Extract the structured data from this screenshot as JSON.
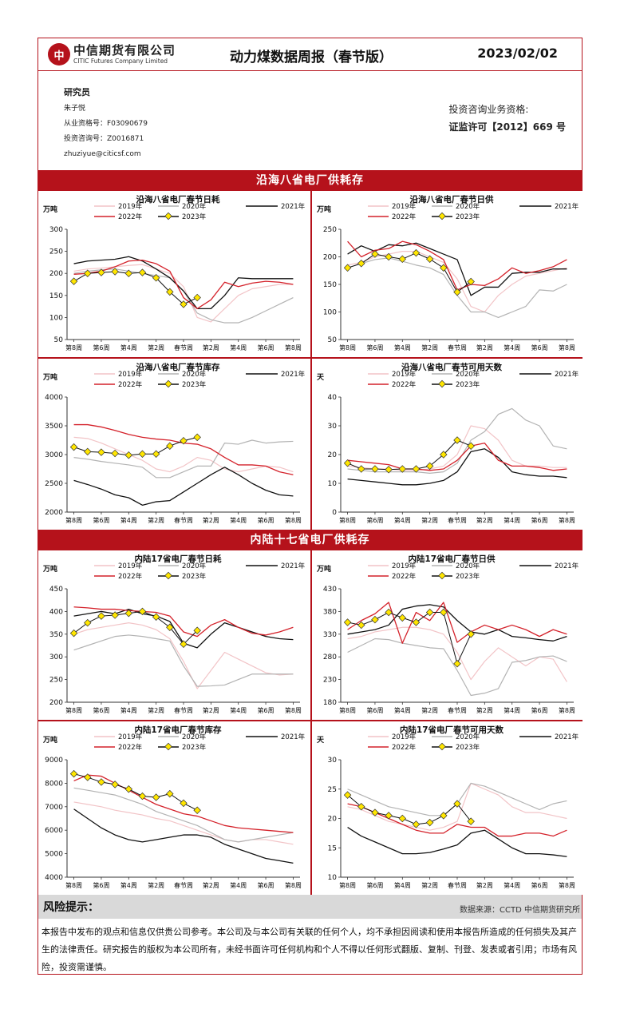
{
  "header": {
    "logo_mark": "中",
    "company_cn": "中信期货有限公司",
    "company_en": "CITIC Futures Company Limited",
    "title": "动力煤数据周报（春节版）",
    "date": "2023/02/02"
  },
  "analyst": {
    "role": "研究员",
    "name": "朱子悦",
    "license": "从业资格号：F03090679",
    "consult": "投资咨询号：Z0016871",
    "email": "zhuziyue@citicsf.com"
  },
  "qualification": {
    "line1": "投资咨询业务资格:",
    "line2": "证监许可【2012】669 号"
  },
  "sections": {
    "coastal": "沿海八省电厂供耗存",
    "inland": "内陆十七省电厂供耗存"
  },
  "legend": [
    "2019年",
    "2020年",
    "2021年",
    "2022年",
    "2023年"
  ],
  "x_ticks": [
    "第8周",
    "第6周",
    "第4周",
    "第2周",
    "春节周",
    "第2周",
    "第4周",
    "第6周",
    "第8周"
  ],
  "colors": {
    "y2019": "#f2c4c7",
    "y2020": "#b3b3b3",
    "y2021": "#111111",
    "y2022": "#d4212a",
    "y2023_line": "#111111",
    "y2023_marker": "#ffe600",
    "brand": "#b5121b"
  },
  "charts": [
    {
      "title": "沿海八省电厂春节日耗",
      "unit": "万吨",
      "ylim": [
        50,
        300
      ],
      "yticks": [
        50,
        100,
        150,
        200,
        250,
        300
      ],
      "series": [
        {
          "name": "2019年",
          "values": [
            205,
            210,
            212,
            215,
            218,
            220,
            210,
            200,
            170,
            100,
            90,
            120,
            150,
            165,
            170,
            175,
            175
          ]
        },
        {
          "name": "2020年",
          "values": [
            200,
            205,
            208,
            210,
            205,
            200,
            195,
            190,
            160,
            110,
            95,
            88,
            88,
            100,
            115,
            130,
            145
          ]
        },
        {
          "name": "2021年",
          "values": [
            222,
            228,
            230,
            232,
            238,
            228,
            210,
            190,
            160,
            120,
            120,
            150,
            190,
            188,
            188,
            188,
            188
          ]
        },
        {
          "name": "2022年",
          "values": [
            198,
            200,
            205,
            215,
            228,
            230,
            222,
            205,
            145,
            120,
            140,
            180,
            170,
            178,
            182,
            180,
            175
          ]
        },
        {
          "name": "2023年",
          "values": [
            182,
            200,
            202,
            204,
            200,
            202,
            190,
            158,
            130,
            145,
            null,
            null,
            null,
            null,
            null,
            null,
            null
          ]
        }
      ]
    },
    {
      "title": "沿海八省电厂春节日供",
      "unit": "万吨",
      "ylim": [
        50,
        250
      ],
      "yticks": [
        50,
        100,
        150,
        200,
        250
      ],
      "series": [
        {
          "name": "2019年",
          "values": [
            185,
            190,
            200,
            205,
            210,
            210,
            200,
            190,
            160,
            110,
            100,
            130,
            150,
            165,
            170,
            175,
            180
          ]
        },
        {
          "name": "2020年",
          "values": [
            180,
            188,
            195,
            198,
            192,
            185,
            180,
            168,
            130,
            100,
            100,
            90,
            100,
            110,
            140,
            138,
            150
          ]
        },
        {
          "name": "2021年",
          "values": [
            205,
            220,
            210,
            222,
            220,
            225,
            215,
            205,
            195,
            130,
            145,
            145,
            170,
            172,
            172,
            178,
            178
          ]
        },
        {
          "name": "2022年",
          "values": [
            228,
            200,
            212,
            215,
            228,
            222,
            210,
            195,
            140,
            150,
            148,
            160,
            180,
            170,
            175,
            182,
            195
          ]
        },
        {
          "name": "2023年",
          "values": [
            180,
            188,
            205,
            200,
            196,
            207,
            196,
            180,
            136,
            155,
            null,
            null,
            null,
            null,
            null,
            null,
            null
          ]
        }
      ]
    },
    {
      "title": "沿海八省电厂春节库存",
      "unit": "万吨",
      "ylim": [
        2000,
        4000
      ],
      "yticks": [
        2000,
        2500,
        3000,
        3500,
        4000
      ],
      "series": [
        {
          "name": "2019年",
          "values": [
            3300,
            3280,
            3200,
            3100,
            3000,
            2900,
            2750,
            2700,
            2800,
            2950,
            2900,
            2750,
            2700,
            2750,
            2800,
            2780,
            2700
          ]
        },
        {
          "name": "2020年",
          "values": [
            2950,
            2920,
            2880,
            2850,
            2820,
            2780,
            2600,
            2600,
            2700,
            2800,
            2800,
            3200,
            3180,
            3250,
            3200,
            3220,
            3230
          ]
        },
        {
          "name": "2021年",
          "values": [
            2550,
            2480,
            2400,
            2300,
            2250,
            2120,
            2180,
            2200,
            2350,
            2500,
            2650,
            2780,
            2650,
            2500,
            2380,
            2300,
            2280
          ]
        },
        {
          "name": "2022年",
          "values": [
            3520,
            3520,
            3480,
            3420,
            3350,
            3300,
            3270,
            3250,
            3200,
            3180,
            3100,
            2950,
            2820,
            2820,
            2800,
            2700,
            2650
          ]
        },
        {
          "name": "2023年",
          "values": [
            3130,
            3050,
            3040,
            3020,
            2990,
            3010,
            3010,
            3150,
            3240,
            3300,
            null,
            null,
            null,
            null,
            null,
            null,
            null
          ]
        }
      ]
    },
    {
      "title": "沿海八省电厂春节可用天数",
      "unit": "天",
      "ylim": [
        0,
        40
      ],
      "yticks": [
        0,
        10,
        20,
        30,
        40
      ],
      "series": [
        {
          "name": "2019年",
          "values": [
            16,
            15.5,
            15,
            15,
            14.5,
            14.5,
            15,
            16,
            20,
            30,
            29,
            25,
            18,
            16,
            16,
            15.5,
            15.5
          ]
        },
        {
          "name": "2020年",
          "values": [
            15,
            14.5,
            14,
            14,
            14,
            14,
            13.5,
            14,
            17,
            25,
            28,
            34,
            36,
            32,
            30,
            23,
            22
          ]
        },
        {
          "name": "2021年",
          "values": [
            11.5,
            11,
            10.5,
            10,
            9.5,
            9.5,
            10,
            11,
            14,
            21,
            22,
            19,
            14,
            13,
            12.5,
            12.5,
            12
          ]
        },
        {
          "name": "2022年",
          "values": [
            18,
            17.5,
            17,
            16.5,
            15,
            15,
            14.5,
            15,
            18,
            23,
            24,
            18,
            16,
            16,
            15.5,
            14.5,
            15
          ]
        },
        {
          "name": "2023年",
          "values": [
            17,
            15,
            15,
            14.8,
            15,
            15,
            16,
            20,
            25,
            23,
            null,
            null,
            null,
            null,
            null,
            null,
            null
          ]
        }
      ]
    },
    {
      "title": "内陆17省电厂春节日耗",
      "unit": "万吨",
      "ylim": [
        200,
        450
      ],
      "yticks": [
        200,
        250,
        300,
        350,
        400,
        450
      ],
      "series": [
        {
          "name": "2019年",
          "values": [
            350,
            360,
            365,
            370,
            375,
            370,
            360,
            340,
            290,
            230,
            270,
            310,
            295,
            280,
            265,
            260,
            262
          ]
        },
        {
          "name": "2020年",
          "values": [
            315,
            325,
            335,
            345,
            348,
            345,
            340,
            335,
            280,
            235,
            236,
            238,
            250,
            262,
            262,
            262,
            262
          ]
        },
        {
          "name": "2021年",
          "values": [
            390,
            395,
            400,
            395,
            405,
            395,
            390,
            378,
            330,
            320,
            350,
            375,
            365,
            355,
            345,
            340,
            338
          ]
        },
        {
          "name": "2022年",
          "values": [
            410,
            408,
            405,
            405,
            402,
            400,
            398,
            390,
            355,
            345,
            370,
            382,
            365,
            352,
            348,
            355,
            365
          ]
        },
        {
          "name": "2023年",
          "values": [
            352,
            375,
            390,
            392,
            396,
            400,
            388,
            365,
            328,
            358,
            null,
            null,
            null,
            null,
            null,
            null,
            null
          ]
        }
      ]
    },
    {
      "title": "内陆17省电厂春节日供",
      "unit": "万吨",
      "ylim": [
        180,
        430
      ],
      "yticks": [
        180,
        230,
        280,
        330,
        380,
        430
      ],
      "series": [
        {
          "name": "2019年",
          "values": [
            320,
            325,
            335,
            340,
            345,
            345,
            340,
            330,
            290,
            230,
            270,
            300,
            280,
            260,
            280,
            275,
            225
          ]
        },
        {
          "name": "2020年",
          "values": [
            290,
            305,
            320,
            318,
            310,
            305,
            300,
            298,
            250,
            195,
            200,
            210,
            268,
            272,
            280,
            282,
            270
          ]
        },
        {
          "name": "2021年",
          "values": [
            330,
            335,
            340,
            350,
            385,
            392,
            395,
            390,
            360,
            335,
            330,
            340,
            325,
            322,
            318,
            315,
            325
          ]
        },
        {
          "name": "2022年",
          "values": [
            340,
            360,
            375,
            400,
            310,
            378,
            360,
            400,
            312,
            335,
            350,
            340,
            350,
            340,
            325,
            340,
            330
          ]
        },
        {
          "name": "2023年",
          "values": [
            356,
            350,
            362,
            378,
            366,
            356,
            378,
            378,
            265,
            330,
            null,
            null,
            null,
            null,
            null,
            null,
            null
          ]
        }
      ]
    },
    {
      "title": "内陆17省电厂春节库存",
      "unit": "万吨",
      "ylim": [
        4000,
        9000
      ],
      "yticks": [
        4000,
        5000,
        6000,
        7000,
        8000,
        9000
      ],
      "series": [
        {
          "name": "2019年",
          "values": [
            7200,
            7100,
            7000,
            6850,
            6750,
            6650,
            6500,
            6400,
            6200,
            6000,
            5800,
            5600,
            5500,
            5600,
            5600,
            5500,
            5400
          ]
        },
        {
          "name": "2020年",
          "values": [
            7800,
            7700,
            7600,
            7500,
            7300,
            7100,
            6800,
            6600,
            6400,
            6200,
            5900,
            5600,
            5500,
            5600,
            5700,
            5800,
            5900
          ]
        },
        {
          "name": "2021年",
          "values": [
            6900,
            6500,
            6100,
            5800,
            5600,
            5500,
            5600,
            5700,
            5800,
            5800,
            5700,
            5400,
            5200,
            5000,
            4800,
            4700,
            4600
          ]
        },
        {
          "name": "2022年",
          "values": [
            8100,
            8350,
            8300,
            8000,
            7700,
            7400,
            7100,
            6900,
            6700,
            6600,
            6400,
            6200,
            6100,
            6050,
            6000,
            5950,
            5900
          ]
        },
        {
          "name": "2023年",
          "values": [
            8400,
            8250,
            8050,
            7950,
            7750,
            7450,
            7400,
            7550,
            7150,
            6850,
            null,
            null,
            null,
            null,
            null,
            null,
            null
          ]
        }
      ]
    },
    {
      "title": "内陆17省电厂春节可用天数",
      "unit": "天",
      "ylim": [
        10,
        30
      ],
      "yticks": [
        10,
        15,
        20,
        25,
        30
      ],
      "series": [
        {
          "name": "2019年",
          "values": [
            22,
            21.5,
            20.5,
            19.5,
            19,
            18.5,
            18,
            18.5,
            19.5,
            26,
            25,
            24,
            22,
            21,
            21,
            20.5,
            20
          ]
        },
        {
          "name": "2020年",
          "values": [
            25,
            24,
            23,
            22,
            21.5,
            21,
            20.5,
            20.5,
            22.5,
            26,
            25.5,
            24.5,
            23.5,
            22.5,
            21.5,
            22.5,
            23
          ]
        },
        {
          "name": "2021年",
          "values": [
            18.5,
            17,
            16,
            15,
            14,
            14,
            14.2,
            14.8,
            15.5,
            17.5,
            18,
            16.5,
            15,
            14,
            14,
            13.8,
            13.5
          ]
        },
        {
          "name": "2022年",
          "values": [
            22.5,
            22,
            21,
            20,
            19,
            18,
            17.5,
            17.5,
            19,
            18.5,
            18.5,
            17,
            17,
            17.5,
            17.5,
            17,
            18
          ]
        },
        {
          "name": "2023年",
          "values": [
            24,
            22,
            21,
            20.5,
            20,
            19,
            19.3,
            20.5,
            22.5,
            19.5,
            null,
            null,
            null,
            null,
            null,
            null,
            null
          ]
        }
      ]
    }
  ],
  "risk": {
    "title": "风险提示：",
    "source": "数据来源：CCTD 中信期货研究所",
    "disclaimer": "本报告中发布的观点和信息仅供贵公司参考。本公司及与本公司有关联的任何个人，均不承担因阅读和使用本报告所造成的任何损失及其产生的法律责任。研究报告的版权为本公司所有，未经书面许可任何机构和个人不得以任何形式翻版、复制、刊登、发表或者引用；市场有风险，投资需谨慎。"
  }
}
